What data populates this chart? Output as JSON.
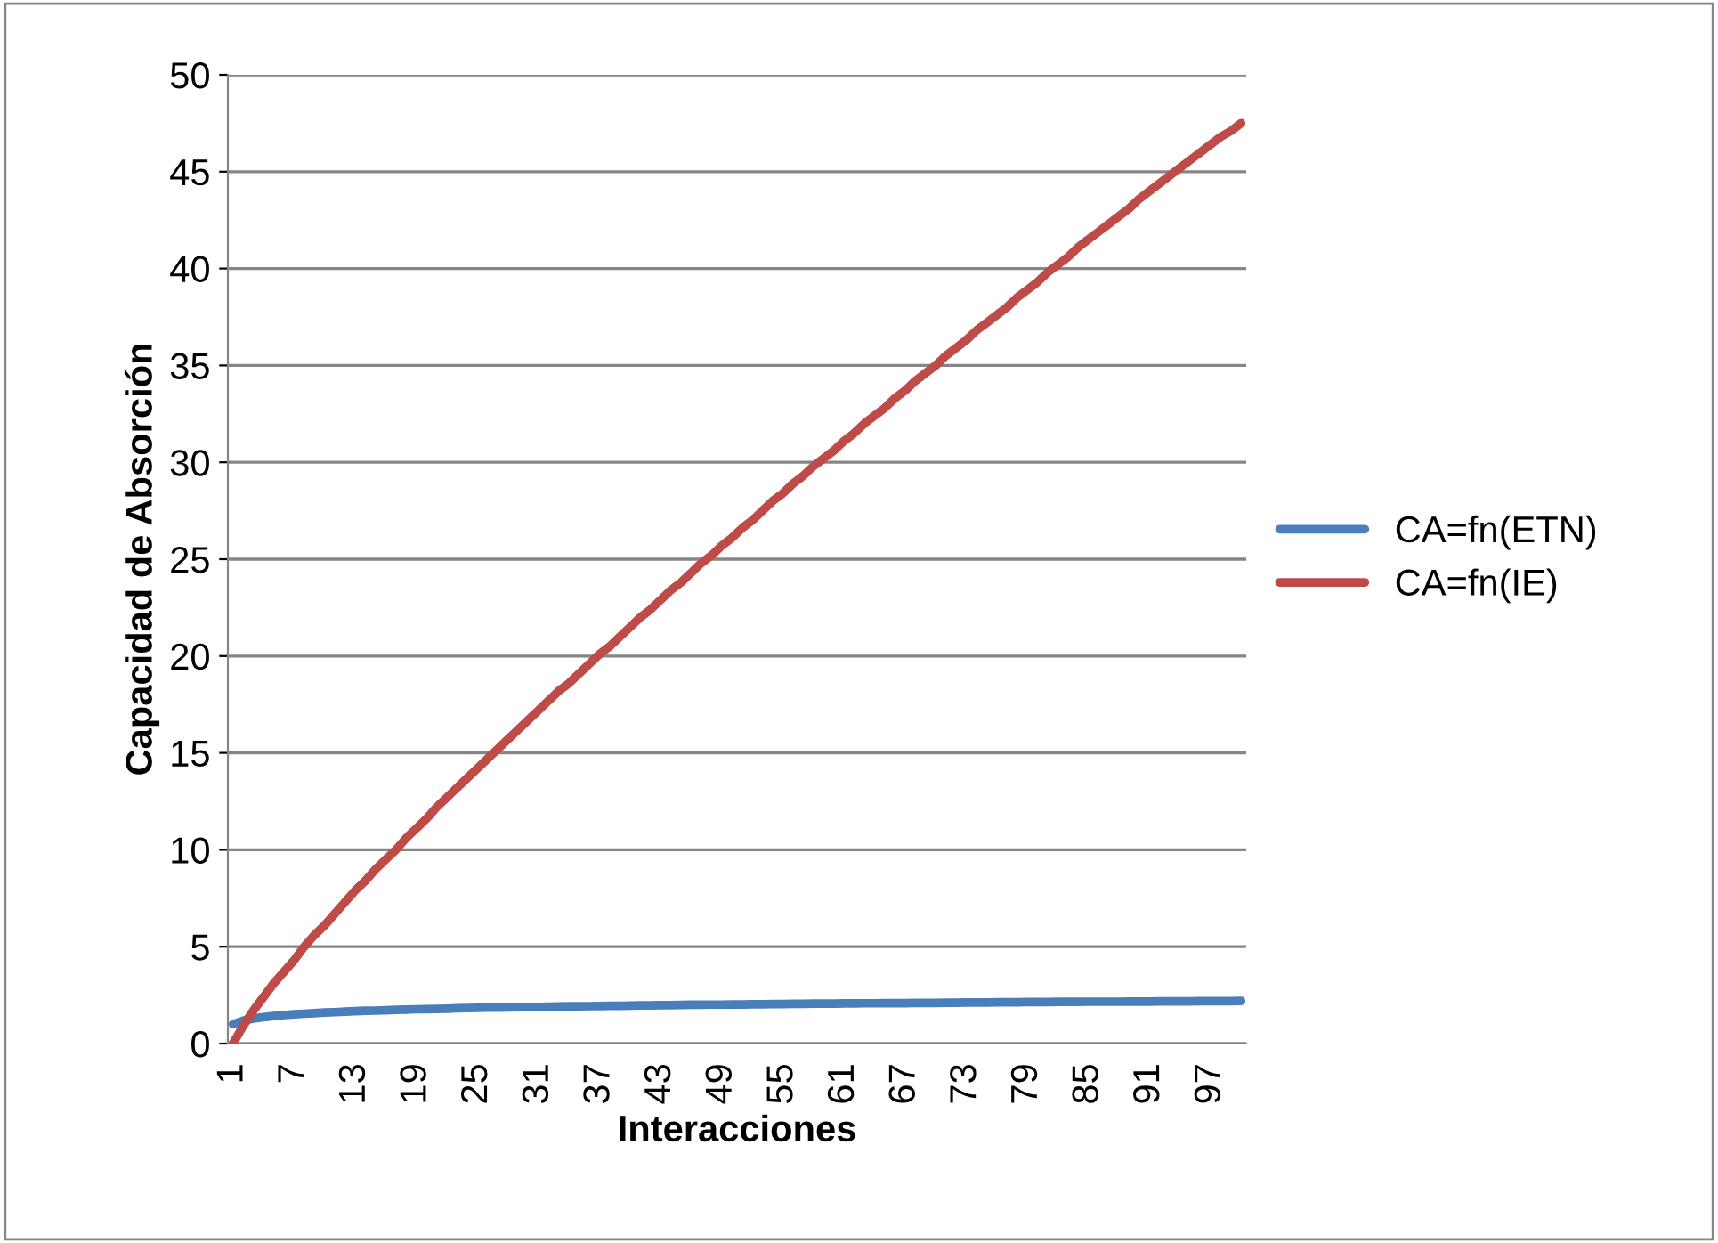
{
  "chart_data": {
    "type": "line",
    "xlabel": "Interacciones",
    "ylabel": "Capacidad de Absorción",
    "categories": [
      "1",
      null,
      null,
      null,
      null,
      null,
      "7",
      null,
      null,
      null,
      null,
      null,
      "13",
      null,
      null,
      null,
      null,
      null,
      "19",
      null,
      null,
      null,
      null,
      null,
      "25",
      null,
      null,
      null,
      null,
      null,
      "31",
      null,
      null,
      null,
      null,
      null,
      "37",
      null,
      null,
      null,
      null,
      null,
      "43",
      null,
      null,
      null,
      null,
      null,
      "49",
      null,
      null,
      null,
      null,
      null,
      "55",
      null,
      null,
      null,
      null,
      null,
      "61",
      null,
      null,
      null,
      null,
      null,
      "67",
      null,
      null,
      null,
      null,
      null,
      "73",
      null,
      null,
      null,
      null,
      null,
      "79",
      null,
      null,
      null,
      null,
      null,
      "85",
      null,
      null,
      null,
      null,
      null,
      "91",
      null,
      null,
      null,
      null,
      null,
      "97",
      null,
      null,
      null
    ],
    "series": [
      {
        "name": "CA=fn(ETN)",
        "color": "#4a7ebb",
        "values": [
          1.0,
          1.18,
          1.29,
          1.36,
          1.42,
          1.47,
          1.51,
          1.54,
          1.57,
          1.6,
          1.62,
          1.65,
          1.67,
          1.69,
          1.7,
          1.72,
          1.74,
          1.75,
          1.77,
          1.78,
          1.79,
          1.8,
          1.82,
          1.83,
          1.84,
          1.85,
          1.86,
          1.87,
          1.88,
          1.88,
          1.89,
          1.9,
          1.91,
          1.92,
          1.92,
          1.93,
          1.94,
          1.95,
          1.95,
          1.96,
          1.97,
          1.97,
          1.98,
          1.98,
          1.99,
          2.0,
          2.0,
          2.01,
          2.01,
          2.02,
          2.02,
          2.03,
          2.03,
          2.04,
          2.04,
          2.05,
          2.05,
          2.06,
          2.06,
          2.06,
          2.07,
          2.07,
          2.08,
          2.08,
          2.09,
          2.09,
          2.09,
          2.1,
          2.1,
          2.1,
          2.11,
          2.11,
          2.12,
          2.12,
          2.12,
          2.13,
          2.13,
          2.13,
          2.14,
          2.14,
          2.14,
          2.15,
          2.15,
          2.15,
          2.16,
          2.16,
          2.16,
          2.16,
          2.17,
          2.17,
          2.17,
          2.18,
          2.18,
          2.18,
          2.18,
          2.19,
          2.19,
          2.19,
          2.19,
          2.2
        ]
      },
      {
        "name": "CA=fn(IE)",
        "color": "#be4b48",
        "values": [
          0,
          0.9,
          1.7,
          2.4,
          3.1,
          3.7,
          4.3,
          5.0,
          5.6,
          6.1,
          6.7,
          7.3,
          7.9,
          8.4,
          9.0,
          9.5,
          10.0,
          10.6,
          11.1,
          11.6,
          12.2,
          12.7,
          13.2,
          13.7,
          14.2,
          14.7,
          15.2,
          15.7,
          16.2,
          16.7,
          17.2,
          17.7,
          18.2,
          18.6,
          19.1,
          19.6,
          20.1,
          20.5,
          21.0,
          21.5,
          22.0,
          22.4,
          22.9,
          23.4,
          23.8,
          24.3,
          24.8,
          25.2,
          25.7,
          26.1,
          26.6,
          27.0,
          27.5,
          28.0,
          28.4,
          28.9,
          29.3,
          29.8,
          30.2,
          30.6,
          31.1,
          31.5,
          32.0,
          32.4,
          32.8,
          33.3,
          33.7,
          34.2,
          34.6,
          35.0,
          35.5,
          35.9,
          36.3,
          36.8,
          37.2,
          37.6,
          38.0,
          38.5,
          38.9,
          39.3,
          39.8,
          40.2,
          40.6,
          41.1,
          41.5,
          41.9,
          42.3,
          42.7,
          43.1,
          43.6,
          44.0,
          44.4,
          44.8,
          45.2,
          45.6,
          46.0,
          46.4,
          46.8,
          47.1,
          47.5
        ]
      }
    ],
    "ylim": [
      0,
      50
    ],
    "yticks": [
      0,
      5,
      10,
      15,
      20,
      25,
      30,
      35,
      40,
      45,
      50
    ],
    "grid": "y",
    "legend": "right",
    "marker": "none",
    "line_style": "solid"
  }
}
